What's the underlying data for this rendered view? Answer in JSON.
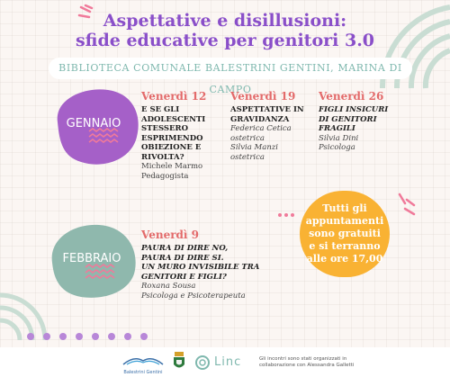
{
  "title": {
    "line1": "Aspettative e disillusioni:",
    "line2": "sfide educative per genitori 3.0"
  },
  "venue": "BIBLIOTECA COMUNALE BALESTRINI GENTINI, MARINA DI CAMPO",
  "months": {
    "january": "GENNAIO",
    "february": "FEBBRAIO"
  },
  "january_events": [
    {
      "day": "Venerdì 12",
      "title": [
        "E SE GLI",
        "ADOLESCENTI",
        "STESSERO",
        "ESPRIMENDO",
        "OBIEZIONE E",
        "RIVOLTA?"
      ],
      "speakers": [
        "Michele Marmo",
        "Pedagogista"
      ]
    },
    {
      "day": "Venerdì 19",
      "title": [
        "ASPETTATIVE IN",
        "GRAVIDANZA"
      ],
      "speakers": [
        "Federica Cetica",
        "ostetrica",
        "Silvia Manzi",
        "ostetrica"
      ]
    },
    {
      "day": "Venerdì 26",
      "title": [
        "FIGLI INSICURI",
        "DI GENITORI",
        "FRAGILI"
      ],
      "speakers": [
        "Silvia Dini",
        "Psicologa"
      ]
    }
  ],
  "february_event": {
    "day": "Venerdì 9",
    "title": [
      "PAURA DI DIRE NO,",
      "PAURA DI DIRE SI.",
      "UN MURO INVISIBILE TRA",
      "GENITORI E FIGLI?"
    ],
    "speakers": [
      "Roxana Sousa",
      "Psicologa e Psicoterapeuta"
    ]
  },
  "info_badge": [
    "Tutti gli",
    "appuntamenti",
    "sono gratuiti",
    "e si terranno",
    "alle ore 17,00"
  ],
  "footer": {
    "logo1_text": "Balestrini Gentini",
    "logo3_text": "Linc",
    "note": [
      "Gli incontri sono stati organizzati in",
      "collaborazione con Alessandra Galletti"
    ]
  },
  "colors": {
    "title": "#8a4fc9",
    "purple_blob": "#a560c8",
    "green_blob": "#8fb8ad",
    "orange": "#f9b233",
    "day_red": "#e36a6a",
    "pink_accent": "#f07a9a",
    "teal_venue": "#7fb8ae"
  },
  "icons": [
    "sparkle-lines-icon",
    "concentric-arcs-icon",
    "wavy-lines-icon",
    "dots-row-icon",
    "library-logo-icon",
    "municipal-crest-icon",
    "linc-logo-icon"
  ]
}
